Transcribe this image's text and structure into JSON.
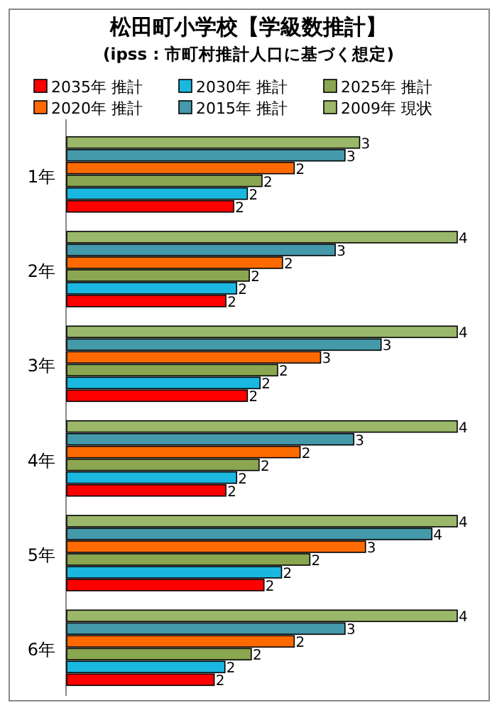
{
  "chart_data": {
    "type": "bar",
    "orientation": "horizontal",
    "title": "松田町小学校【学級数推計】",
    "subtitle": "(ipss : 市町村推計人口に基づく想定)",
    "legend": "top",
    "categories": [
      "1年",
      "2年",
      "3年",
      "4年",
      "5年",
      "6年"
    ],
    "series": [
      {
        "name": "2035年 推計",
        "color": "#ff0000",
        "values": [
          1.71,
          1.63,
          1.85,
          1.63,
          2.02,
          1.51
        ],
        "value_labels": [
          "2",
          "2",
          "2",
          "2",
          "2",
          "2"
        ]
      },
      {
        "name": "2030年 推計",
        "color": "#1ab8e0",
        "values": [
          1.85,
          1.74,
          1.98,
          1.74,
          2.2,
          1.62
        ],
        "value_labels": [
          "2",
          "2",
          "2",
          "2",
          "2",
          "2"
        ]
      },
      {
        "name": "2025年 推計",
        "color": "#8aa650",
        "values": [
          2.0,
          1.87,
          2.16,
          1.97,
          2.49,
          1.89
        ],
        "value_labels": [
          "2",
          "2",
          "2",
          "2",
          "2",
          "2"
        ]
      },
      {
        "name": "2020年 推計",
        "color": "#ff6a00",
        "values": [
          2.33,
          2.21,
          2.6,
          2.39,
          3.06,
          2.33
        ],
        "value_labels": [
          "2",
          "2",
          "3",
          "2",
          "3",
          "2"
        ]
      },
      {
        "name": "2015年 推計",
        "color": "#4499aa",
        "values": [
          2.85,
          2.75,
          3.22,
          2.94,
          3.74,
          2.85
        ],
        "value_labels": [
          "3",
          "3",
          "3",
          "3",
          "4",
          "3"
        ]
      },
      {
        "name": "2009年 現状",
        "color": "#9bb76a",
        "values": [
          3.0,
          4.0,
          4.0,
          4.0,
          4.0,
          4.0
        ],
        "value_labels": [
          "3",
          "4",
          "4",
          "4",
          "4",
          "4"
        ]
      }
    ]
  }
}
